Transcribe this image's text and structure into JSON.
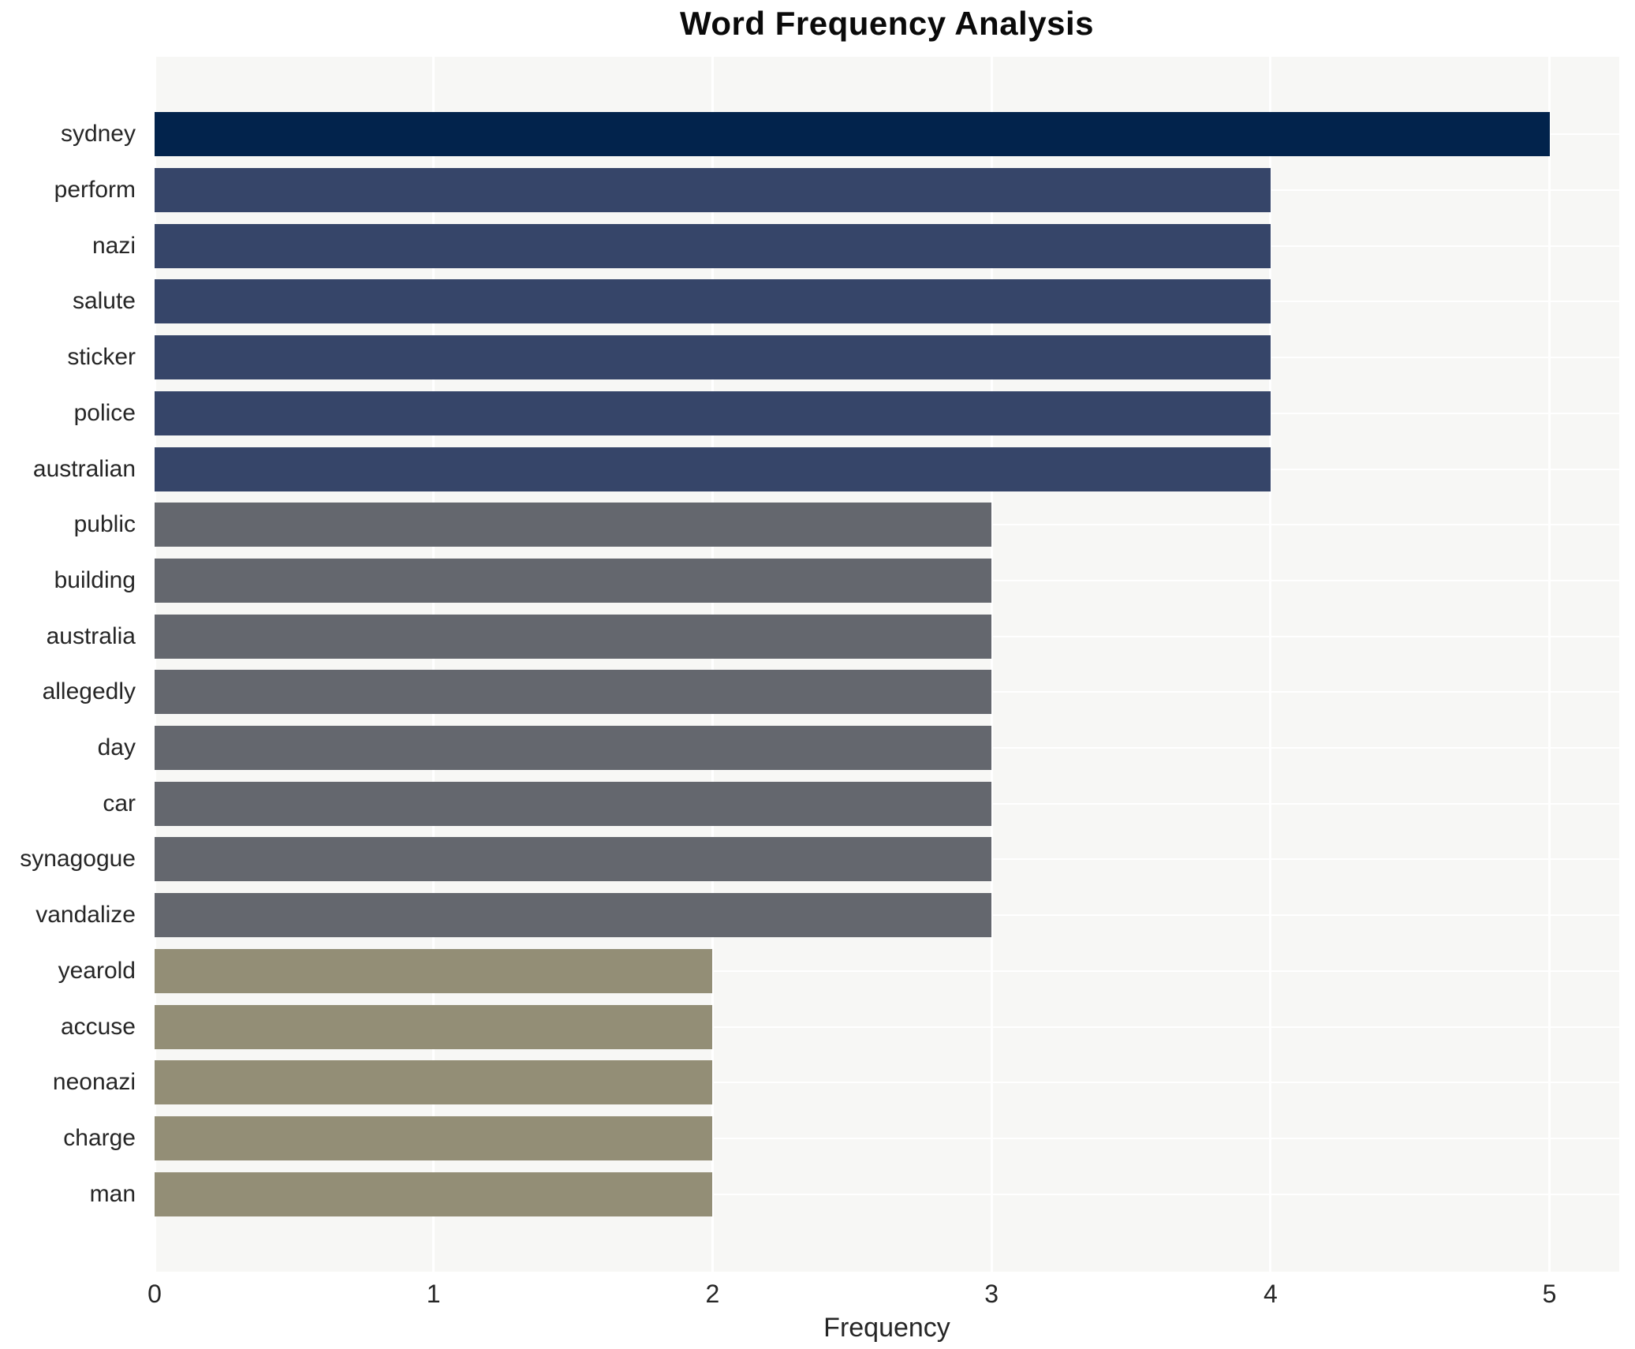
{
  "chart_data": {
    "type": "bar",
    "orientation": "horizontal",
    "title": "Word Frequency Analysis",
    "xlabel": "Frequency",
    "ylabel": "",
    "categories": [
      "sydney",
      "perform",
      "nazi",
      "salute",
      "sticker",
      "police",
      "australian",
      "public",
      "building",
      "australia",
      "allegedly",
      "day",
      "car",
      "synagogue",
      "vandalize",
      "yearold",
      "accuse",
      "neonazi",
      "charge",
      "man"
    ],
    "values": [
      5,
      4,
      4,
      4,
      4,
      4,
      4,
      3,
      3,
      3,
      3,
      3,
      3,
      3,
      3,
      2,
      2,
      2,
      2,
      2
    ],
    "xticks": [
      0,
      1,
      2,
      3,
      4,
      5
    ],
    "xlim": [
      0,
      5.25
    ],
    "legend": false,
    "grid": true,
    "styles": {
      "color_by_value": {
        "5": "#02234c",
        "4": "#364569",
        "3": "#64676e",
        "2": "#938e76"
      },
      "plot_background": "#f7f7f5",
      "grid_color": "#ffffff",
      "text_color": "#262626",
      "title_color": "#0a0a0a"
    }
  }
}
